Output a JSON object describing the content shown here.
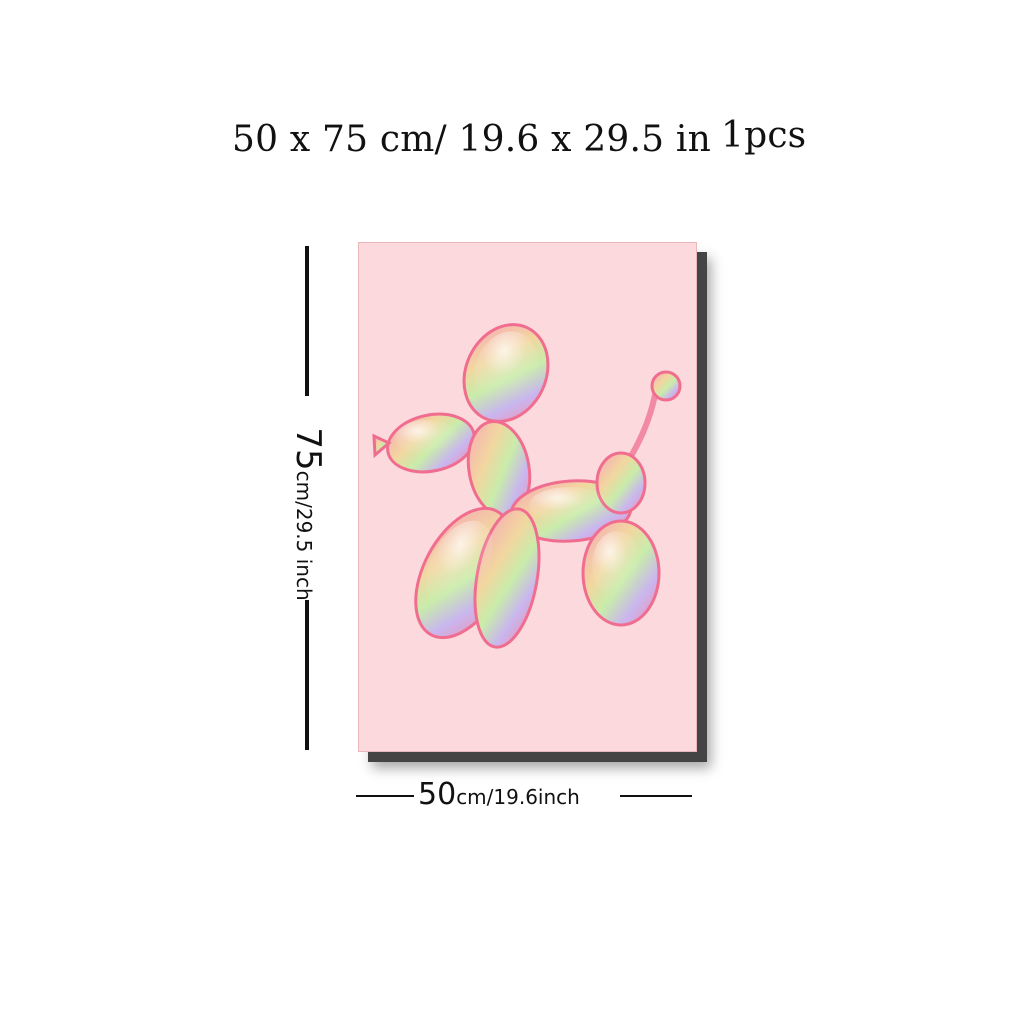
{
  "header": {
    "size_text": "50 x 75 cm/ 19.6  x  29.5 in",
    "quantity": "1pcs"
  },
  "dimensions": {
    "height": {
      "value": "75",
      "unit_text": "cm/29.5 inch"
    },
    "width": {
      "value": "50",
      "unit_text": "cm/19.6inch"
    }
  },
  "poster": {
    "background_color": "#fcd9dc",
    "subject": "balloon-dog-artwork"
  }
}
